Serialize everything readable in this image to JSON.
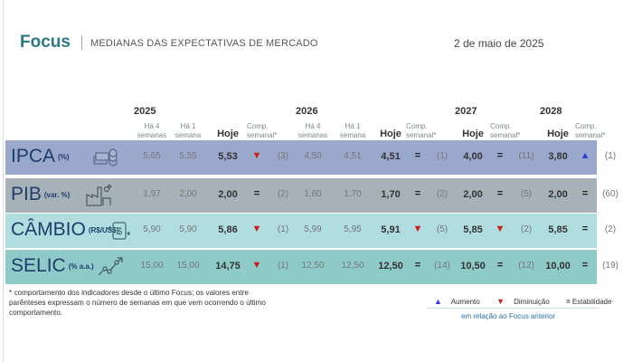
{
  "header": {
    "title": "Focus",
    "subtitle": "MEDIANAS DAS EXPECTATIVAS DE MERCADO",
    "date": "2 de maio de 2025"
  },
  "years": {
    "y2025": "2025",
    "y2026": "2026",
    "y2027": "2027",
    "y2028": "2028"
  },
  "columns": {
    "ha4": "Há 4\nsemanas",
    "ha1": "Há 1\nsemana",
    "hoje": "Hoje",
    "comp": "Comp.\nsemanal*"
  },
  "rows": [
    {
      "name": "IPCA",
      "unit": "(%)",
      "color": "#9aa8cc",
      "icon": "money-stack-icon",
      "y2025": {
        "ha4": "5,65",
        "ha1": "5,55",
        "hoje": "5,53",
        "trend": "▼",
        "trend_type": "down",
        "weeks": "(3)"
      },
      "y2026": {
        "ha4": "4,50",
        "ha1": "4,51",
        "hoje": "4,51",
        "trend": "=",
        "trend_type": "eq",
        "weeks": "(1)"
      },
      "y2027": {
        "hoje": "4,00",
        "trend": "=",
        "trend_type": "eq",
        "weeks": "(11)"
      },
      "y2028": {
        "hoje": "3,80",
        "trend": "▲",
        "trend_type": "up",
        "weeks": "(1)"
      }
    },
    {
      "name": "PIB",
      "unit": "(var. %)",
      "color": "#a6b2b8",
      "icon": "factory-icon",
      "y2025": {
        "ha4": "1,97",
        "ha1": "2,00",
        "hoje": "2,00",
        "trend": "=",
        "trend_type": "eq",
        "weeks": "(2)"
      },
      "y2026": {
        "ha4": "1,60",
        "ha1": "1,70",
        "hoje": "1,70",
        "trend": "=",
        "trend_type": "eq",
        "weeks": "(2)"
      },
      "y2027": {
        "hoje": "2,00",
        "trend": "=",
        "trend_type": "eq",
        "weeks": "(5)"
      },
      "y2028": {
        "hoje": "2,00",
        "trend": "=",
        "trend_type": "eq",
        "weeks": "(60)"
      }
    },
    {
      "name": "CÂMBIO",
      "unit": "(R$/US$)",
      "color": "#b0dde0",
      "icon": "dollar-exchange-icon",
      "y2025": {
        "ha4": "5,90",
        "ha1": "5,90",
        "hoje": "5,86",
        "trend": "▼",
        "trend_type": "down",
        "weeks": "(1)"
      },
      "y2026": {
        "ha4": "5,99",
        "ha1": "5,95",
        "hoje": "5,91",
        "trend": "▼",
        "trend_type": "down",
        "weeks": "(5)"
      },
      "y2027": {
        "hoje": "5,85",
        "trend": "▼",
        "trend_type": "down",
        "weeks": "(2)"
      },
      "y2028": {
        "hoje": "5,85",
        "trend": "=",
        "trend_type": "eq",
        "weeks": "(2)"
      }
    },
    {
      "name": "SELIC",
      "unit": "(% a.a.)",
      "color": "#8ecac8",
      "icon": "rising-chart-icon",
      "y2025": {
        "ha4": "15,00",
        "ha1": "15,00",
        "hoje": "14,75",
        "trend": "▼",
        "trend_type": "down",
        "weeks": "(1)"
      },
      "y2026": {
        "ha4": "12,50",
        "ha1": "12,50",
        "hoje": "12,50",
        "trend": "=",
        "trend_type": "eq",
        "weeks": "(14)"
      },
      "y2027": {
        "hoje": "10,50",
        "trend": "=",
        "trend_type": "eq",
        "weeks": "(12)"
      },
      "y2028": {
        "hoje": "10,00",
        "trend": "=",
        "trend_type": "eq",
        "weeks": "(19)"
      }
    }
  ],
  "footnote": "* comportamento dos indicadores desde o último Focus; os valores entre parênteses expressam o número de semanas em que vem ocorrendo o último comportamento.",
  "legend": {
    "up_symbol": "▲",
    "up_label": "Aumento",
    "down_symbol": "▼",
    "down_label": "Diminuição",
    "eq_symbol": "=",
    "eq_label": "Estabilidade",
    "note": "em relação ao Focus anterior"
  }
}
